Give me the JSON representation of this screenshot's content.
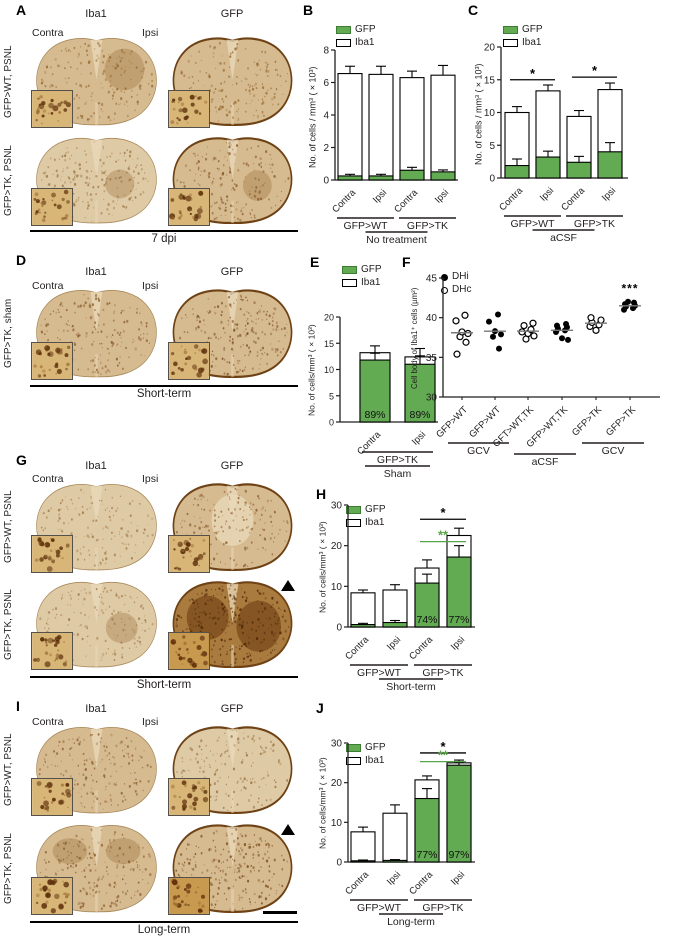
{
  "panels": {
    "A": {
      "letter": "A",
      "stain_headers": [
        "Iba1",
        "GFP"
      ],
      "side_labels": [
        "Contra",
        "Ipsi"
      ],
      "row_labels": [
        "GFP>WT, PSNL",
        "GFP>TK, PSNL"
      ],
      "caption": "7 dpi"
    },
    "B": {
      "letter": "B"
    },
    "C": {
      "letter": "C"
    },
    "D": {
      "letter": "D",
      "stain_headers": [
        "Iba1",
        "GFP"
      ],
      "side_labels": [
        "Contra",
        "Ipsi"
      ],
      "row_labels": [
        "GFP>TK, sham"
      ],
      "caption": "Short-term"
    },
    "E": {
      "letter": "E"
    },
    "F": {
      "letter": "F"
    },
    "G": {
      "letter": "G",
      "stain_headers": [
        "Iba1",
        "GFP"
      ],
      "side_labels": [
        "Contra",
        "Ipsi"
      ],
      "row_labels": [
        "GFP>WT, PSNL",
        "GFP>TK, PSNL"
      ],
      "caption": "Short-term",
      "marker": "triangle-up"
    },
    "H": {
      "letter": "H"
    },
    "I": {
      "letter": "I",
      "stain_headers": [
        "Iba1",
        "GFP"
      ],
      "side_labels": [
        "Contra",
        "Ipsi"
      ],
      "row_labels": [
        "GFP>WT, PSNL",
        "GFP>TK, PSNL"
      ],
      "caption": "Long-term",
      "marker": "triangle-up"
    },
    "J": {
      "letter": "J"
    }
  },
  "colors": {
    "gfp_green": "#62ab53",
    "sig_green": "#58a44a",
    "ink": "#231f20"
  },
  "chart_data": [
    {
      "panel": "B",
      "type": "stacked-bar",
      "ylabel": "No. of cells / mm³ (×10³)",
      "ylim": [
        0,
        8
      ],
      "yticks": [
        0,
        2,
        4,
        6,
        8
      ],
      "categories": [
        "Contra",
        "Ipsi",
        "Contra",
        "Ipsi"
      ],
      "series": [
        {
          "name": "GFP",
          "color": "#62ab53",
          "values": [
            0.25,
            0.25,
            0.6,
            0.5
          ],
          "errors": [
            0.1,
            0.1,
            0.18,
            0.12
          ]
        },
        {
          "name": "Iba1",
          "color": "#ffffff",
          "totals": [
            6.55,
            6.5,
            6.3,
            6.45
          ],
          "errors": [
            0.45,
            0.5,
            0.4,
            0.6
          ]
        }
      ],
      "legend": [
        {
          "label": "GFP",
          "color": "#62ab53"
        },
        {
          "label": "Iba1",
          "color": "#ffffff"
        }
      ],
      "groups": [
        {
          "label": "GFP>WT",
          "cols": [
            0,
            1
          ]
        },
        {
          "label": "GFP>TK",
          "cols": [
            2,
            3
          ]
        }
      ],
      "bottom_label": "No treatment",
      "sig": [],
      "bar_labels": []
    },
    {
      "panel": "C",
      "type": "stacked-bar",
      "ylabel": "No. of cells / mm³ (×10³)",
      "ylim": [
        0,
        20
      ],
      "yticks": [
        0,
        5,
        10,
        15,
        20
      ],
      "categories": [
        "Contra",
        "Ipsi",
        "Contra",
        "Ipsi"
      ],
      "series": [
        {
          "name": "GFP",
          "color": "#62ab53",
          "values": [
            1.9,
            3.2,
            2.4,
            4.0
          ],
          "errors": [
            1.0,
            0.9,
            0.9,
            1.4
          ]
        },
        {
          "name": "Iba1",
          "color": "#ffffff",
          "totals": [
            10.0,
            13.3,
            9.4,
            13.5
          ],
          "errors": [
            0.9,
            0.9,
            0.9,
            1.0
          ]
        }
      ],
      "legend": [
        {
          "label": "GFP",
          "color": "#62ab53"
        },
        {
          "label": "Iba1",
          "color": "#ffffff"
        }
      ],
      "groups": [
        {
          "label": "GFP>WT",
          "cols": [
            0,
            1
          ]
        },
        {
          "label": "GFP>TK",
          "cols": [
            2,
            3
          ]
        }
      ],
      "bottom_label": "aCSF",
      "sig": [
        {
          "cols": [
            0,
            1
          ],
          "y": 15.0,
          "text": "*",
          "color": "#000000"
        },
        {
          "cols": [
            2,
            3
          ],
          "y": 15.4,
          "text": "*",
          "color": "#000000"
        }
      ],
      "bar_labels": []
    },
    {
      "panel": "E",
      "type": "stacked-bar",
      "ylabel": "No. of cells/mm³ (×10³)",
      "ylim": [
        0,
        20
      ],
      "yticks": [
        0,
        5,
        10,
        15,
        20
      ],
      "categories": [
        "Contra",
        "Ipsi"
      ],
      "series": [
        {
          "name": "GFP",
          "color": "#62ab53",
          "values": [
            11.8,
            11.0
          ],
          "errors": [
            1.3,
            1.6
          ]
        },
        {
          "name": "Iba1",
          "color": "#ffffff",
          "totals": [
            13.2,
            12.4
          ],
          "errors": [
            1.3,
            1.6
          ]
        }
      ],
      "legend": [
        {
          "label": "GFP",
          "color": "#62ab53"
        },
        {
          "label": "Iba1",
          "color": "#ffffff"
        }
      ],
      "groups": [
        {
          "label": "GFP>TK",
          "cols": [
            0,
            1
          ]
        }
      ],
      "bottom_label": "Sham",
      "sig": [],
      "bar_labels": [
        {
          "col": 0,
          "text": "89%"
        },
        {
          "col": 1,
          "text": "89%"
        }
      ]
    },
    {
      "panel": "F",
      "type": "scatter",
      "ylabel": "Cell body of Iba1⁺ cells (µm²)",
      "ylim": [
        30,
        45
      ],
      "yticks": [
        30,
        35,
        40,
        45
      ],
      "legend": [
        {
          "label": "DHi",
          "marker": "filled"
        },
        {
          "label": "DHc",
          "marker": "open"
        }
      ],
      "columns": [
        {
          "label": "GFP>WT",
          "marker": "open",
          "values": [
            35.4,
            36.9,
            37.6,
            38.0,
            38.2,
            39.6,
            40.3
          ],
          "mean": 38.1
        },
        {
          "label": "GFP>WT",
          "marker": "filled",
          "values": [
            36.1,
            37.6,
            37.9,
            38.3,
            39.5,
            40.4
          ],
          "mean": 38.3
        },
        {
          "label": "GFT>WT,TK",
          "marker": "open",
          "values": [
            37.3,
            37.7,
            38.0,
            38.2,
            38.5,
            39.0,
            39.3
          ],
          "mean": 38.3
        },
        {
          "label": "GFP>WT,TK",
          "marker": "filled",
          "values": [
            37.2,
            37.4,
            38.2,
            38.4,
            38.6,
            38.8,
            39.0,
            39.2
          ],
          "mean": 38.4
        },
        {
          "label": "GFP>TK",
          "marker": "open",
          "values": [
            38.4,
            38.9,
            39.1,
            39.4,
            39.7,
            40.0
          ],
          "mean": 39.3
        },
        {
          "label": "GFP>TK",
          "marker": "filled",
          "values": [
            41.0,
            41.2,
            41.4,
            41.5,
            41.7,
            41.9,
            42.0
          ],
          "mean": 41.5
        }
      ],
      "groups": [
        {
          "label": "GCV",
          "cols": [
            0,
            1
          ],
          "row": 0
        },
        {
          "label": "aCSF",
          "cols": [
            2,
            3
          ],
          "row": 1
        },
        {
          "label": "GCV",
          "cols": [
            4,
            5
          ],
          "row": 0
        }
      ],
      "annotation": {
        "col": 5,
        "text": "***",
        "y": 43.2
      }
    },
    {
      "panel": "H",
      "type": "stacked-bar",
      "ylabel": "No. of cells/mm³ (×10³)",
      "ylim": [
        0,
        30
      ],
      "yticks": [
        0,
        10,
        20,
        30
      ],
      "categories": [
        "Contra",
        "Ipsi",
        "Contra",
        "Ipsi"
      ],
      "series": [
        {
          "name": "GFP",
          "color": "#62ab53",
          "values": [
            0.6,
            1.1,
            10.8,
            17.2
          ],
          "errors": [
            0.3,
            0.5,
            2.2,
            2.8
          ]
        },
        {
          "name": "Iba1",
          "color": "#ffffff",
          "totals": [
            8.4,
            9.1,
            14.5,
            22.5
          ],
          "errors": [
            0.7,
            1.3,
            2.0,
            1.8
          ]
        }
      ],
      "legend": [
        {
          "label": "GFP",
          "color": "#62ab53"
        },
        {
          "label": "Iba1",
          "color": "#ffffff"
        }
      ],
      "groups": [
        {
          "label": "GFP>WT",
          "cols": [
            0,
            1
          ]
        },
        {
          "label": "GFP>TK",
          "cols": [
            2,
            3
          ]
        }
      ],
      "bottom_label": "Short-term",
      "sig": [
        {
          "cols": [
            2,
            3
          ],
          "y": 26.5,
          "text": "*",
          "color": "#000000"
        },
        {
          "cols": [
            2,
            3
          ],
          "y": 21.0,
          "text": "**",
          "color": "#58a44a"
        }
      ],
      "bar_labels": [
        {
          "col": 2,
          "text": "74%"
        },
        {
          "col": 3,
          "text": "77%"
        }
      ]
    },
    {
      "panel": "J",
      "type": "stacked-bar",
      "ylabel": "No. of cells/mm³ (×10³)",
      "ylim": [
        0,
        30
      ],
      "yticks": [
        0,
        10,
        20,
        30
      ],
      "categories": [
        "Contra",
        "Ipsi",
        "Contra",
        "Ipsi"
      ],
      "series": [
        {
          "name": "GFP",
          "color": "#62ab53",
          "values": [
            0.3,
            0.4,
            16.0,
            24.4
          ],
          "errors": [
            0.2,
            0.2,
            2.5,
            0.8
          ]
        },
        {
          "name": "Iba1",
          "color": "#ffffff",
          "totals": [
            7.6,
            12.3,
            20.7,
            25.0
          ],
          "errors": [
            1.2,
            2.1,
            1.0,
            0.7
          ]
        }
      ],
      "legend": [
        {
          "label": "GFP",
          "color": "#62ab53"
        },
        {
          "label": "Iba1",
          "color": "#ffffff"
        }
      ],
      "groups": [
        {
          "label": "GFP>WT",
          "cols": [
            0,
            1
          ]
        },
        {
          "label": "GFP>TK",
          "cols": [
            2,
            3
          ]
        }
      ],
      "bottom_label": "Long-term",
      "sig": [
        {
          "cols": [
            2,
            3
          ],
          "y": 27.5,
          "text": "*",
          "color": "#000000"
        },
        {
          "cols": [
            2,
            3
          ],
          "y": 25.3,
          "text": "**",
          "color": "#58a44a"
        }
      ],
      "bar_labels": [
        {
          "col": 2,
          "text": "77%"
        },
        {
          "col": 3,
          "text": "97%"
        }
      ]
    }
  ]
}
